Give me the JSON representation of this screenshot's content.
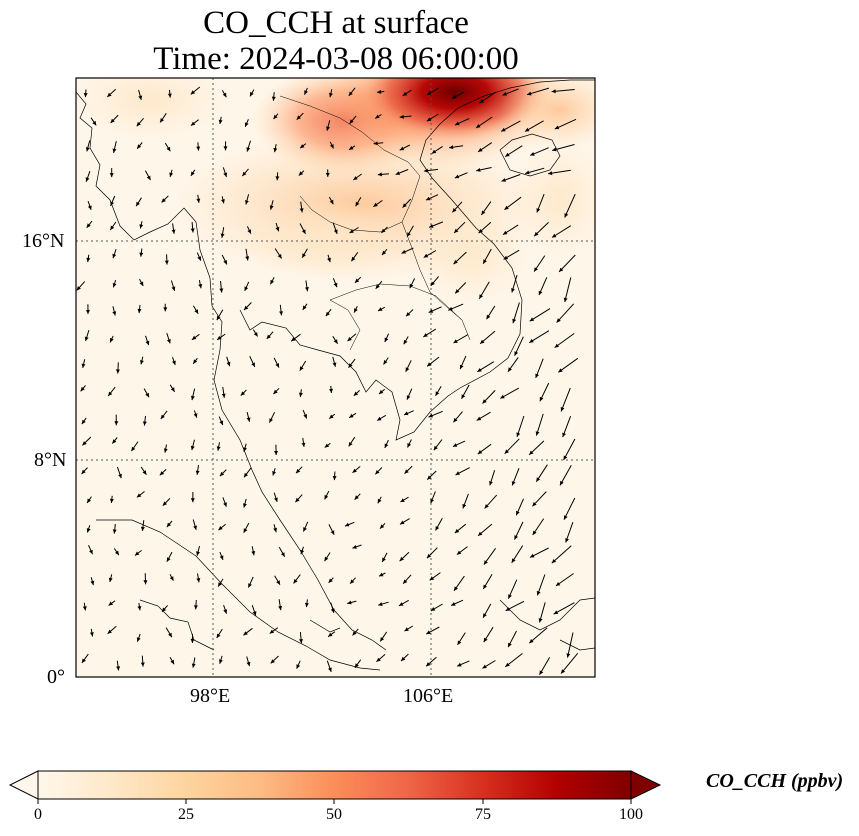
{
  "title": {
    "line1": "CO_CCH at surface",
    "line2": "Time: 2024-03-08 06:00:00"
  },
  "map": {
    "lat_labels": [
      "16°N",
      "8°N",
      "0°"
    ],
    "lon_labels": [
      "98°E",
      "106°E"
    ],
    "lat_range": [
      0,
      22
    ],
    "lon_range": [
      93,
      112
    ],
    "gridlines": "dotted",
    "variable": "CO_CCH",
    "plume": "highest concentrations over southern China and northern Vietnam/Laos; near zero over the rest of the domain",
    "wind_vectors": "black quiver arrows; strong north-easterly flow over the South China Sea"
  },
  "colorbar": {
    "label": "CO_CCH (ppbv)",
    "colormap": "OrRd",
    "ticks": [
      "0",
      "25",
      "50",
      "75",
      "100"
    ],
    "range": [
      0,
      100
    ],
    "extend": "both",
    "colors": [
      "#fff7ec",
      "#fdd49e",
      "#fc8d59",
      "#d7301f",
      "#7f0000"
    ]
  }
}
